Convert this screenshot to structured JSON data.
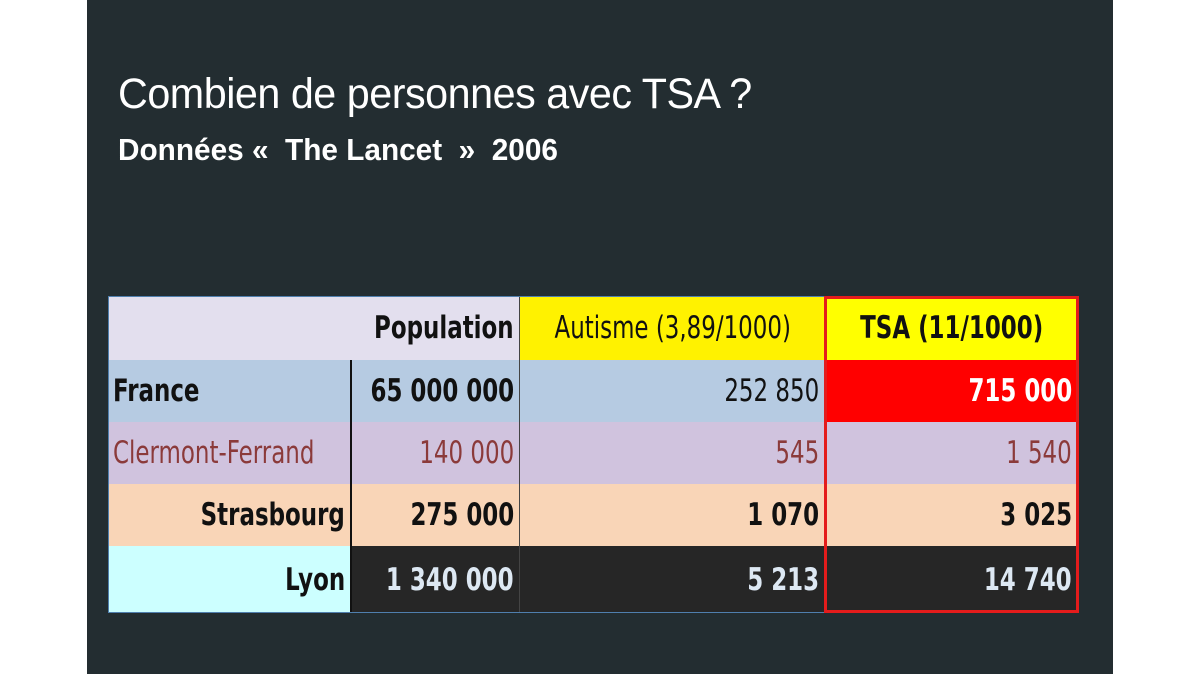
{
  "slide": {
    "title": "Combien de personnes avec TSA ?",
    "subtitle": "Données «  The Lancet  »  2006"
  },
  "table": {
    "headers": [
      "",
      "Population",
      "Autisme (3,89/1000)",
      "TSA (11/1000)"
    ],
    "rows": [
      {
        "city": "France",
        "population": "65 000 000",
        "autisme": "252 850",
        "tsa": "715 000"
      },
      {
        "city": "Clermont-Ferrand",
        "population": "140 000",
        "autisme": "545",
        "tsa": "1 540"
      },
      {
        "city": "Strasbourg",
        "population": "275 000",
        "autisme": "1 070",
        "tsa": "3 025"
      },
      {
        "city": "Lyon",
        "population": "1 340 000",
        "autisme": "5 213",
        "tsa": "14 740"
      }
    ]
  },
  "colors": {
    "slide_background": "#232d31",
    "header_row": "#e3dfee",
    "autisme_header": "#fff200",
    "tsa_header": "#ffff00",
    "tsa_highlight": "#ff0000",
    "tsa_border": "#e41c1c",
    "france_row": "#b6cbe2",
    "clermont_row": "#d0c3de",
    "clermont_text": "#8b3a3a",
    "strasbourg_row": "#f9d5b7",
    "lyon_label_cell": "#ccffff",
    "lyon_row": "#262626",
    "lyon_text": "#dde8f3"
  }
}
